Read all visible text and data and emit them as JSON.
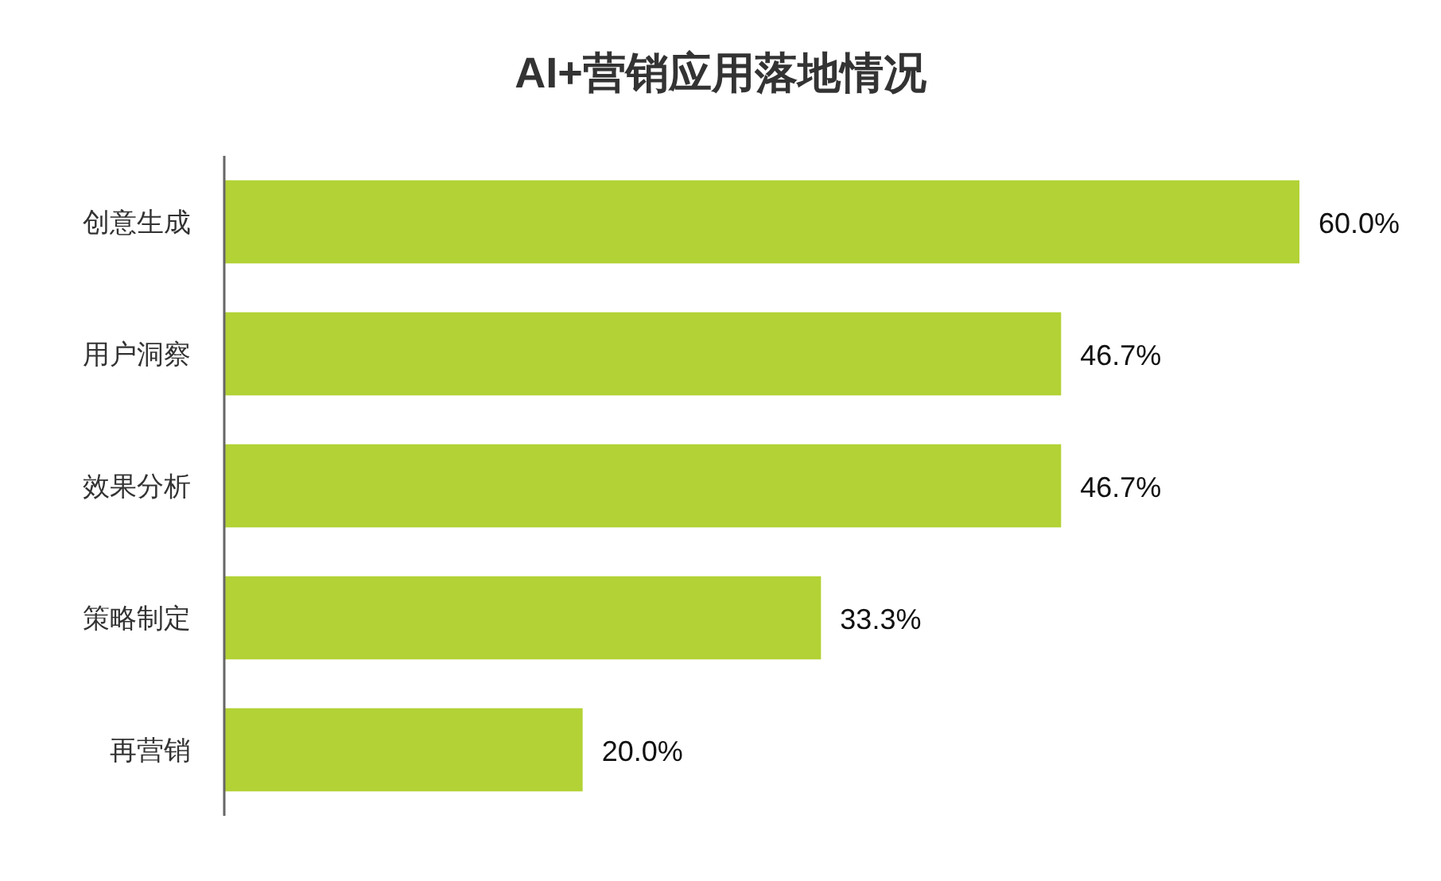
{
  "chart_data": {
    "type": "bar",
    "orientation": "horizontal",
    "title": "AI+营销应用落地情况",
    "categories": [
      "创意生成",
      "用户洞察",
      "效果分析",
      "策略制定",
      "再营销"
    ],
    "values": [
      60.0,
      46.7,
      46.7,
      33.3,
      20.0
    ],
    "value_labels": [
      "60.0%",
      "46.7%",
      "46.7%",
      "33.3%",
      "20.0%"
    ],
    "color": "#b2d235"
  }
}
